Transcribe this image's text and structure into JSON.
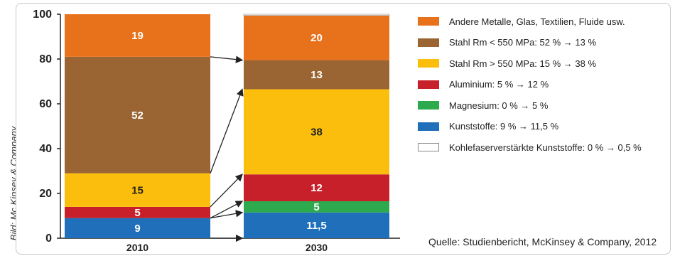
{
  "credit": "Bild: Mc Kinsey & Company",
  "source": "Quelle: Studienbericht, McKinsey & Company, 2012",
  "chart_data": {
    "type": "bar",
    "stacked": true,
    "categories": [
      "2010",
      "2030"
    ],
    "ylim": [
      0,
      100
    ],
    "yticks": [
      "0",
      "20",
      "40",
      "60",
      "80",
      "100"
    ],
    "grid": false,
    "legend_position": "right",
    "series": [
      {
        "name": "Kunststoffe: 9 % → 11,5 %",
        "color": "#1f6fba",
        "values": [
          9,
          11.5
        ],
        "labels": [
          "9",
          "11,5"
        ],
        "label_color": "#ffffff"
      },
      {
        "name": "Magnesium: 0 % → 5 %",
        "color": "#2eaa4e",
        "values": [
          0,
          5
        ],
        "labels": [
          "",
          "5"
        ],
        "label_color": "#ffffff"
      },
      {
        "name": "Aluminium: 5 % → 12 %",
        "color": "#c8202a",
        "values": [
          5,
          12
        ],
        "labels": [
          "5",
          "12"
        ],
        "label_color": "#ffffff"
      },
      {
        "name": "Stahl Rm > 550 MPa: 15 % → 38 %",
        "color": "#fbbe0c",
        "values": [
          15,
          38
        ],
        "labels": [
          "15",
          "38"
        ],
        "label_color": "#222222"
      },
      {
        "name": "Stahl Rm < 550 MPa: 52 % → 13 %",
        "color": "#9a6532",
        "values": [
          52,
          13
        ],
        "labels": [
          "52",
          "13"
        ],
        "label_color": "#ffffff"
      },
      {
        "name": "Andere Metalle, Glas, Textilien, Fluide usw.",
        "color": "#e8721c",
        "values": [
          19,
          20
        ],
        "labels": [
          "19",
          "20"
        ],
        "label_color": "#ffffff"
      },
      {
        "name": "Kohlefaserverstärkte Kunststoffe: 0 % → 0,5 %",
        "color": "#ffffff",
        "values": [
          0,
          0.5
        ],
        "labels": [
          "",
          ""
        ],
        "label_color": "#222222"
      }
    ]
  }
}
